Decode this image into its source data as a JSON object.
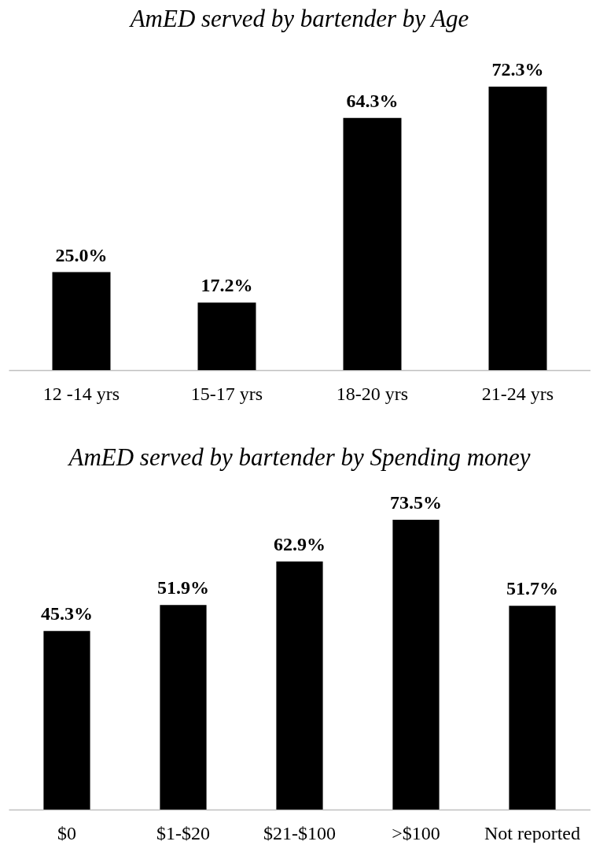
{
  "chart_data": [
    {
      "type": "bar",
      "title": "AmED served by bartender by Age",
      "categories": [
        "12 -14 yrs",
        "15-17 yrs",
        "18-20 yrs",
        "21-24 yrs"
      ],
      "values": [
        25.0,
        17.2,
        64.3,
        72.3
      ],
      "value_labels": [
        "25.0%",
        "17.2%",
        "64.3%",
        "72.3%"
      ],
      "color": "#000000"
    },
    {
      "type": "bar",
      "title": "AmED served by bartender by Spending money",
      "categories": [
        "$0",
        "$1-$20",
        "$21-$100",
        ">$100",
        "Not reported"
      ],
      "values": [
        45.3,
        51.9,
        62.9,
        73.5,
        51.7
      ],
      "value_labels": [
        "45.3%",
        "51.9%",
        "62.9%",
        "73.5%",
        "51.7%"
      ],
      "color": "#000000"
    }
  ]
}
